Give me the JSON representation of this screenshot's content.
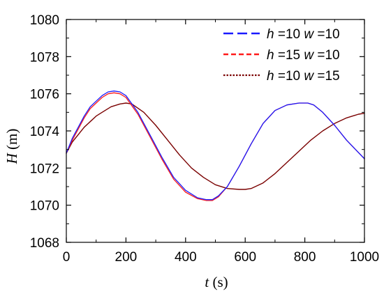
{
  "chart_data": {
    "type": "line",
    "title": "",
    "xlabel": {
      "var": "t",
      "unit": " (s)"
    },
    "ylabel": {
      "var": "H",
      "unit": " (m)"
    },
    "xlim": [
      0,
      1000
    ],
    "ylim": [
      1068,
      1080
    ],
    "x_ticks": [
      0,
      200,
      400,
      600,
      800,
      1000
    ],
    "y_ticks": [
      1068,
      1070,
      1072,
      1074,
      1076,
      1078,
      1080
    ],
    "grid": false,
    "legend_position": "top-right",
    "series": [
      {
        "name": {
          "h": "h",
          "h_val": " =10 ",
          "w": "w",
          "w_val": " =10"
        },
        "color": "#1a1aff",
        "dash": "long-dash",
        "x": [
          0,
          20,
          40,
          60,
          80,
          100,
          120,
          140,
          160,
          180,
          200,
          240,
          280,
          320,
          360,
          400,
          440,
          470,
          490,
          510,
          540,
          580,
          620,
          660,
          700,
          740,
          780,
          810,
          830,
          860,
          900,
          940,
          970,
          1000
        ],
        "y": [
          1072.8,
          1073.6,
          1074.2,
          1074.8,
          1075.3,
          1075.6,
          1075.9,
          1076.1,
          1076.15,
          1076.1,
          1075.9,
          1075.0,
          1073.8,
          1072.6,
          1071.5,
          1070.8,
          1070.4,
          1070.3,
          1070.3,
          1070.5,
          1071.0,
          1072.1,
          1073.3,
          1074.4,
          1075.1,
          1075.4,
          1075.5,
          1075.5,
          1075.4,
          1075.0,
          1074.3,
          1073.5,
          1073.0,
          1072.5
        ]
      },
      {
        "name": {
          "h": "h",
          "h_val": " =15 ",
          "w": "w",
          "w_val": " =10"
        },
        "color": "#ff1a1a",
        "dash": "short-dash",
        "x": [
          0,
          20,
          40,
          60,
          80,
          100,
          120,
          140,
          160,
          180,
          200,
          240,
          280,
          320,
          360,
          400,
          440,
          470,
          490,
          510,
          540,
          580,
          620,
          660,
          700,
          740,
          780,
          810,
          830,
          860,
          900,
          940,
          970,
          1000
        ],
        "y": [
          1072.8,
          1073.5,
          1074.1,
          1074.7,
          1075.2,
          1075.5,
          1075.8,
          1076.0,
          1076.05,
          1076.0,
          1075.8,
          1074.9,
          1073.7,
          1072.5,
          1071.4,
          1070.7,
          1070.35,
          1070.25,
          1070.25,
          1070.45,
          1071.0,
          1072.1,
          1073.3,
          1074.4,
          1075.1,
          1075.4,
          1075.5,
          1075.5,
          1075.4,
          1075.0,
          1074.3,
          1073.5,
          1073.0,
          1072.5
        ]
      },
      {
        "name": {
          "h": "h",
          "h_val": " =10 ",
          "w": "w",
          "w_val": " =15"
        },
        "color": "#7a0000",
        "dash": "dot",
        "x": [
          0,
          20,
          40,
          60,
          80,
          100,
          120,
          150,
          180,
          200,
          220,
          260,
          300,
          340,
          380,
          420,
          460,
          500,
          540,
          580,
          600,
          620,
          660,
          700,
          740,
          780,
          820,
          860,
          900,
          940,
          980,
          1000
        ],
        "y": [
          1072.8,
          1073.4,
          1073.8,
          1074.2,
          1074.5,
          1074.8,
          1075.0,
          1075.3,
          1075.45,
          1075.5,
          1075.45,
          1075.0,
          1074.3,
          1073.5,
          1072.7,
          1072.0,
          1071.5,
          1071.1,
          1070.9,
          1070.85,
          1070.85,
          1070.9,
          1071.2,
          1071.7,
          1072.3,
          1072.9,
          1073.5,
          1074.0,
          1074.4,
          1074.7,
          1074.9,
          1074.95
        ]
      }
    ]
  }
}
